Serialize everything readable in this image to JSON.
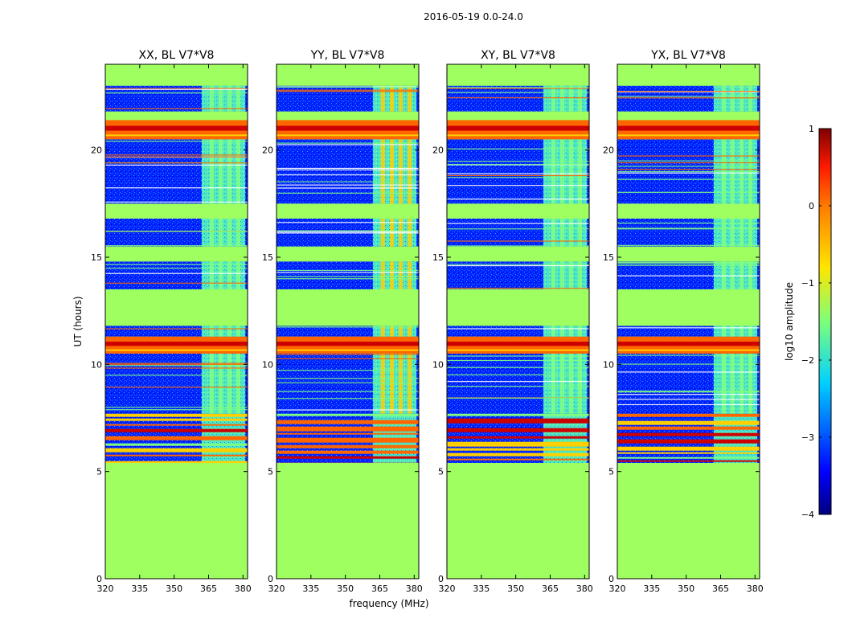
{
  "colors": {
    "background": "#a0ff60",
    "noise_dark": "#0000ff",
    "noise_light": "#3399ff",
    "band_light": "#80ff80",
    "band_bright": "#40e0e0",
    "rfi_red": "#cc0000",
    "rfi_orange": "#ff6600",
    "rfi_yellow": "#ffd000"
  },
  "chart_data": {
    "type": "heatmap",
    "suptitle": "2016-05-19 0.0-24.0",
    "xlabel": "frequency (MHz)",
    "ylabel": "UT (hours)",
    "xlim": [
      320,
      382
    ],
    "ylim": [
      0,
      24
    ],
    "xticks": [
      320,
      335,
      350,
      365,
      380
    ],
    "yticks": [
      0,
      5,
      10,
      15,
      20
    ],
    "panels": [
      {
        "title": "XX, BL V7*V8",
        "pol": "XX"
      },
      {
        "title": "YY, BL V7*V8",
        "pol": "YY"
      },
      {
        "title": "XY, BL V7*V8",
        "pol": "XY"
      },
      {
        "title": "YX, BL V7*V8",
        "pol": "YX"
      }
    ],
    "time_blocks": [
      {
        "start": 0,
        "end": 5.4,
        "kind": "flagged"
      },
      {
        "start": 5.4,
        "end": 7.7,
        "kind": "rfi_stripes"
      },
      {
        "start": 7.7,
        "end": 10.5,
        "kind": "data"
      },
      {
        "start": 10.5,
        "end": 11.3,
        "kind": "rfi_solid"
      },
      {
        "start": 11.3,
        "end": 11.8,
        "kind": "data"
      },
      {
        "start": 11.8,
        "end": 13.5,
        "kind": "flagged"
      },
      {
        "start": 13.5,
        "end": 14.8,
        "kind": "data"
      },
      {
        "start": 14.8,
        "end": 15.5,
        "kind": "flagged"
      },
      {
        "start": 15.5,
        "end": 16.8,
        "kind": "data"
      },
      {
        "start": 16.8,
        "end": 17.5,
        "kind": "flagged"
      },
      {
        "start": 17.5,
        "end": 20.5,
        "kind": "data"
      },
      {
        "start": 20.5,
        "end": 21.4,
        "kind": "rfi_solid"
      },
      {
        "start": 21.4,
        "end": 21.8,
        "kind": "flagged"
      },
      {
        "start": 21.8,
        "end": 23.0,
        "kind": "data"
      },
      {
        "start": 23.0,
        "end": 24.0,
        "kind": "flagged"
      }
    ],
    "bright_band_mhz": [
      362,
      381
    ],
    "colorbar": {
      "label": "log10 amplitude",
      "range": [
        -4,
        1
      ],
      "ticks": [
        -4,
        -3,
        -2,
        -1,
        0,
        1
      ],
      "tick_labels": [
        "−4",
        "−3",
        "−2",
        "−1",
        "0",
        "1"
      ]
    }
  }
}
